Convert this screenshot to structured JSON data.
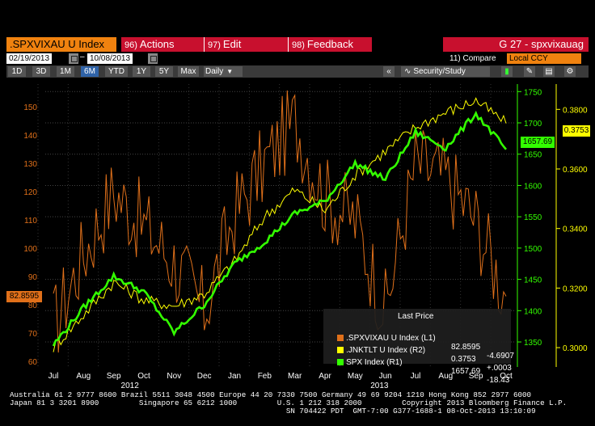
{
  "toolbar": {
    "ticker": ".SPXVIXAU U Index",
    "actions_num": "96)",
    "actions_label": "Actions",
    "edit_num": "97)",
    "edit_label": "Edit",
    "feedback_num": "98)",
    "feedback_label": "Feedback",
    "page_title": "G 27 - spxvixauag"
  },
  "range": {
    "start": "02/19/2013",
    "end": "10/08/2013",
    "compare_label": "11) Compare",
    "currency": "Local CCY"
  },
  "periods": {
    "items": [
      "1D",
      "3D",
      "1M",
      "6M",
      "YTD",
      "1Y",
      "5Y",
      "Max"
    ],
    "active": "6M",
    "frequency": "Daily",
    "security_label": "Security/Study"
  },
  "axes": {
    "left_ticks": [
      "150",
      "140",
      "130",
      "120",
      "110",
      "100",
      "90",
      "80",
      "70",
      "60"
    ],
    "right1_ticks": [
      "1750",
      "1700",
      "1650",
      "1600",
      "1550",
      "1500",
      "1450",
      "1400",
      "1350"
    ],
    "right2_ticks": [
      "0.3800",
      "0.3600",
      "0.3400",
      "0.3200",
      "0.3000"
    ],
    "months": [
      "Jul",
      "Aug",
      "Sep",
      "Oct",
      "Nov",
      "Dec",
      "Jan",
      "Feb",
      "Mar",
      "Apr",
      "May",
      "Jun",
      "Jul",
      "Aug",
      "Sep",
      "Oct"
    ],
    "years": [
      "2012",
      "2013"
    ],
    "last_left": "82.8595",
    "last_r1": "1657.69",
    "last_r2": "0.3753"
  },
  "legend": {
    "title": "Last Price",
    "rows": [
      {
        "name": ".SPXVIXAU U Index (L1)",
        "value": "82.8595",
        "change": "-4.6907",
        "color": "#e0701a"
      },
      {
        "name": ".JNKTLT U Index (R2)",
        "value": "0.3753",
        "change": "+.0003",
        "color": "#ffff00"
      },
      {
        "name": "SPX Index (R1)",
        "value": "1657.69",
        "change": "-18.43",
        "color": "#33ff00"
      }
    ]
  },
  "footer": {
    "line1": "Australia 61 2 9777 8600 Brazil 5511 3048 4500 Europe 44 20 7330 7500 Germany 49 69 9204 1210 Hong Kong 852 2977 6000",
    "line2": "Japan 81 3 3201 8900         Singapore 65 6212 1000         U.S. 1 212 318 2000         Copyright 2013 Bloomberg Finance L.P.",
    "line3": "                                                              SN 704422 PDT  GMT-7:00 G377-1688-1 08-Oct-2013 13:10:09"
  },
  "chart_data": {
    "type": "line",
    "x": [
      "2012-07",
      "2012-08",
      "2012-09",
      "2012-10",
      "2012-11",
      "2012-12",
      "2013-01",
      "2013-02",
      "2013-03",
      "2013-04",
      "2013-05",
      "2013-06",
      "2013-07",
      "2013-08",
      "2013-09",
      "2013-10"
    ],
    "series": [
      {
        "name": ".SPXVIXAU U Index (L1)",
        "axis": "left",
        "color": "#e0701a",
        "values": [
          72,
          98,
          120,
          108,
          95,
          78,
          112,
          130,
          145,
          118,
          110,
          78,
          130,
          125,
          110,
          83
        ]
      },
      {
        "name": ".JNKTLT U Index (R2)",
        "axis": "right2",
        "color": "#ffff00",
        "values": [
          0.3,
          0.311,
          0.322,
          0.316,
          0.314,
          0.318,
          0.329,
          0.344,
          0.353,
          0.346,
          0.358,
          0.366,
          0.374,
          0.379,
          0.383,
          0.3753
        ]
      },
      {
        "name": "SPX Index (R1)",
        "axis": "right1",
        "color": "#33ff00",
        "values": [
          1345,
          1405,
          1455,
          1430,
          1365,
          1410,
          1475,
          1510,
          1555,
          1575,
          1635,
          1610,
          1685,
          1660,
          1715,
          1657.69
        ]
      }
    ],
    "left_ylim": [
      58,
      158
    ],
    "right1_ylim": [
      1310,
      1762
    ],
    "right2_ylim": [
      0.2935,
      0.3885
    ],
    "grid": true
  }
}
